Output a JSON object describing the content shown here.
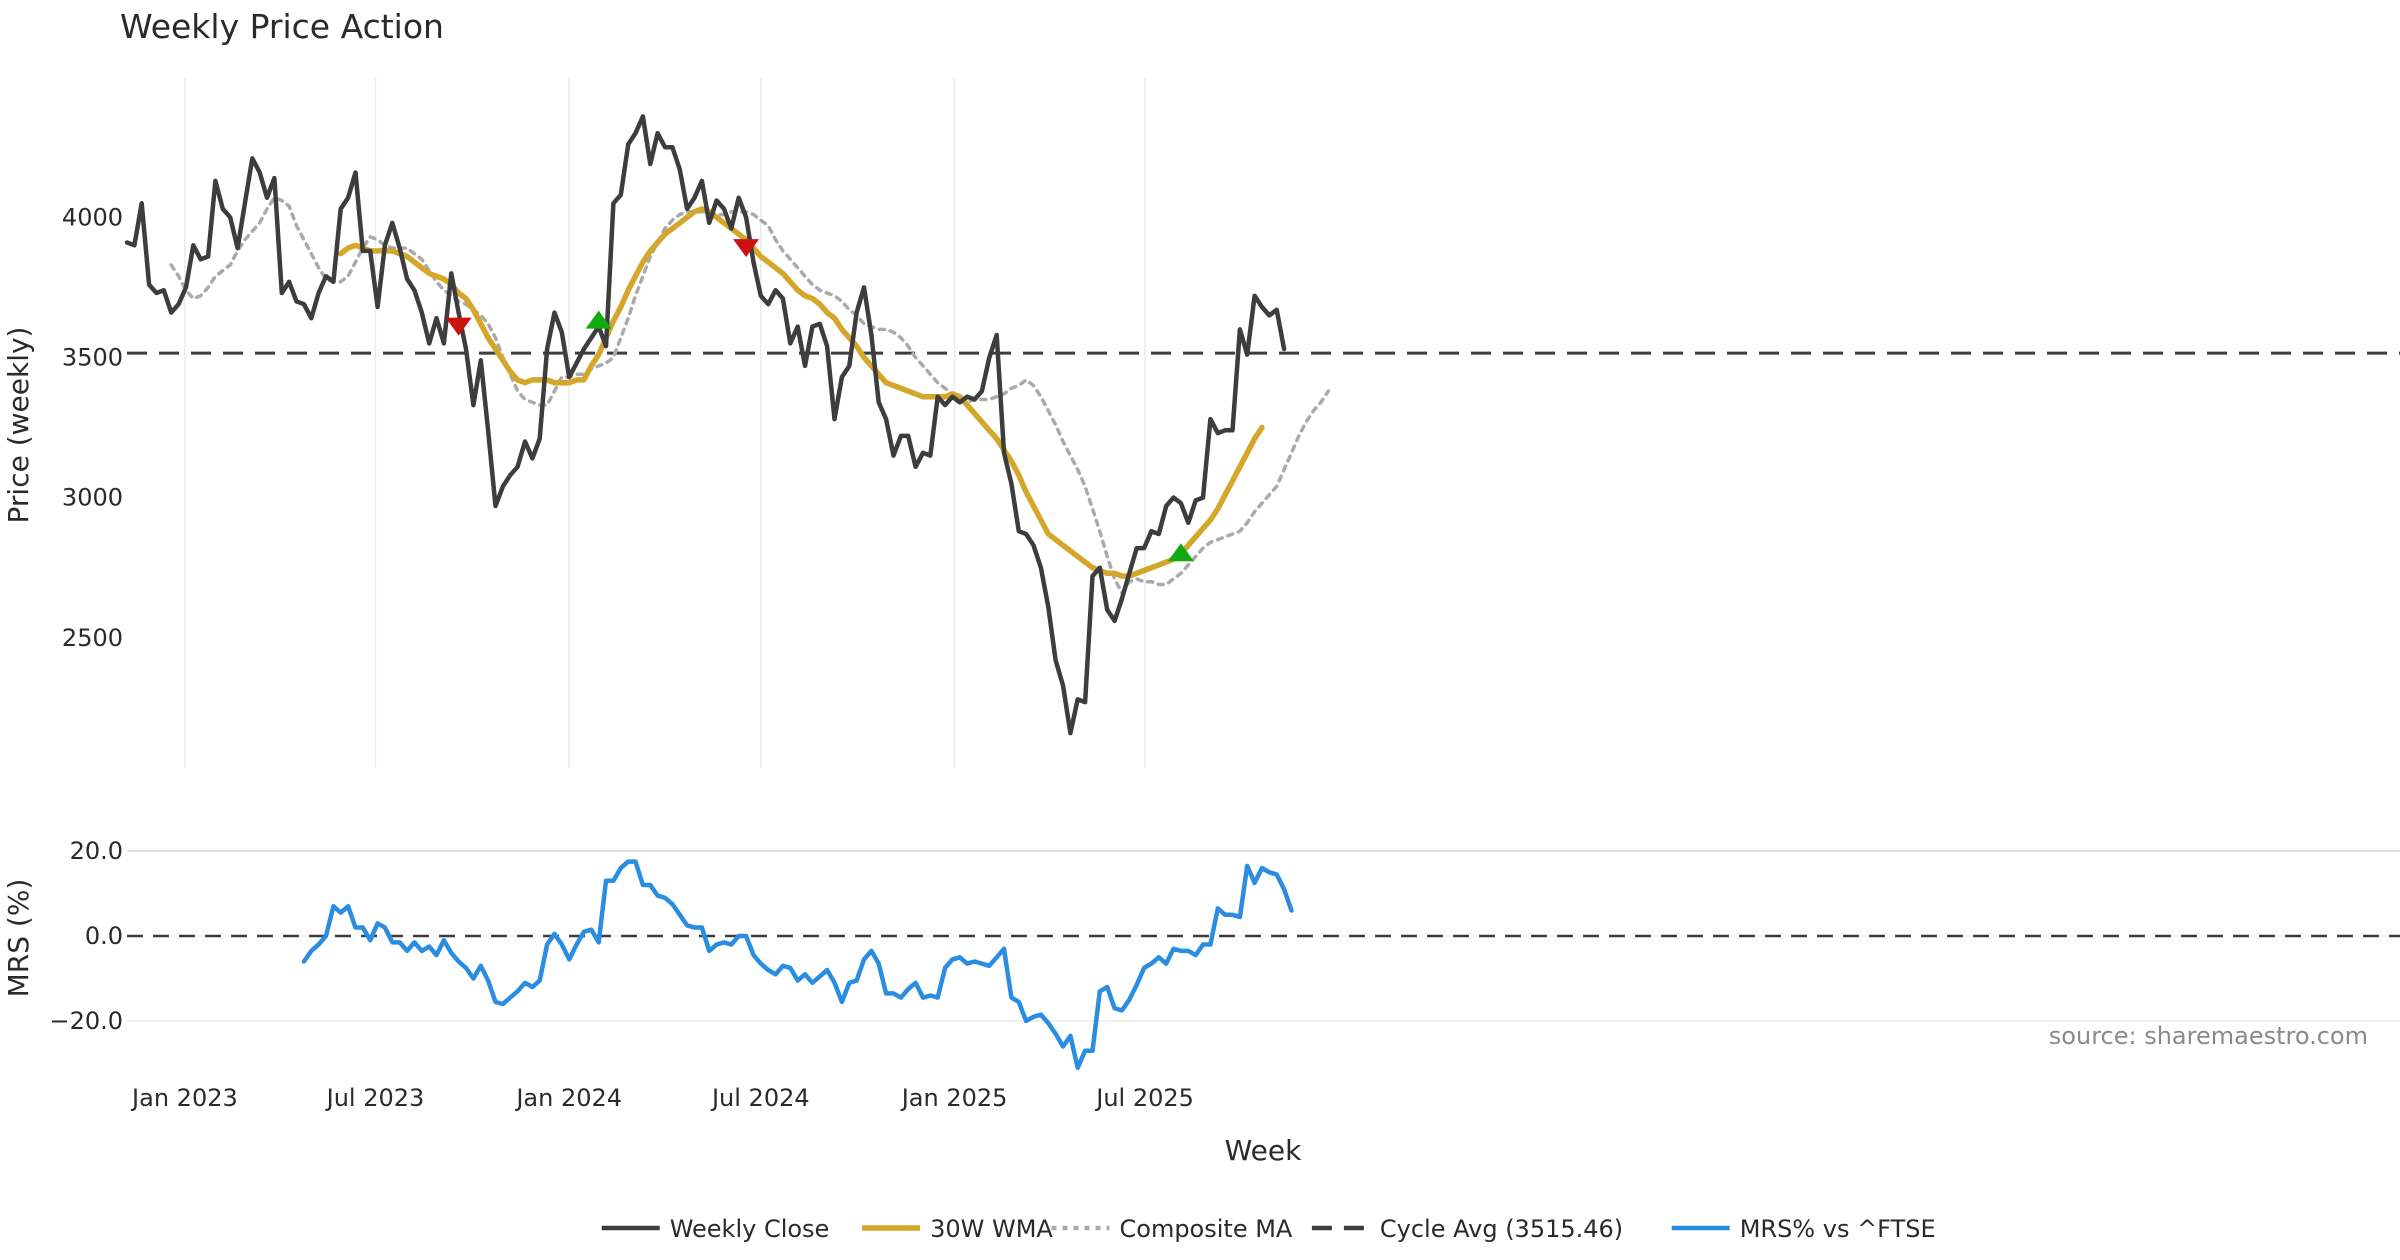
{
  "chart_data": {
    "type": "line",
    "title": "Weekly Price Action",
    "xlabel": "Week",
    "x_ticks": [
      "Jan 2023",
      "Jul 2023",
      "Jan 2024",
      "Jul 2024",
      "Jan 2025",
      "Jul 2025"
    ],
    "start_date": "2022-11-07",
    "source": "source: sharemaestro.com",
    "grid": true,
    "legend_position": "bottom",
    "price_panel": {
      "ylabel": "Price (weekly)",
      "yticks": [
        2500,
        3000,
        3500,
        4000
      ],
      "ylim": [
        2080,
        4480
      ],
      "cycle_avg": 3515.46,
      "series": [
        {
          "name": "Weekly Close",
          "color": "#3d3d3d",
          "style": "solid",
          "start_index": 0,
          "values": [
            3910,
            3900,
            4050,
            3760,
            3730,
            3740,
            3660,
            3690,
            3750,
            3900,
            3850,
            3860,
            4130,
            4030,
            4000,
            3890,
            4050,
            4210,
            4160,
            4070,
            4140,
            3730,
            3770,
            3700,
            3690,
            3640,
            3730,
            3790,
            3770,
            4030,
            4070,
            4160,
            3880,
            3880,
            3680,
            3900,
            3980,
            3890,
            3780,
            3740,
            3660,
            3550,
            3640,
            3550,
            3800,
            3660,
            3530,
            3330,
            3490,
            3240,
            2970,
            3040,
            3080,
            3110,
            3200,
            3140,
            3210,
            3530,
            3660,
            3590,
            3430,
            3480,
            3530,
            3570,
            3610,
            3540,
            4050,
            4080,
            4260,
            4300,
            4360,
            4190,
            4300,
            4250,
            4250,
            4170,
            4030,
            4070,
            4130,
            3980,
            4060,
            4030,
            3960,
            4070,
            4000,
            3840,
            3720,
            3690,
            3740,
            3710,
            3550,
            3610,
            3470,
            3610,
            3620,
            3540,
            3280,
            3430,
            3470,
            3660,
            3750,
            3580,
            3340,
            3280,
            3150,
            3220,
            3220,
            3110,
            3160,
            3150,
            3360,
            3330,
            3360,
            3340,
            3360,
            3350,
            3380,
            3500,
            3580,
            3160,
            3050,
            2880,
            2870,
            2830,
            2750,
            2610,
            2420,
            2330,
            2160,
            2280,
            2270,
            2720,
            2750,
            2600,
            2560,
            2640,
            2730,
            2820,
            2820,
            2880,
            2870,
            2970,
            3000,
            2980,
            2910,
            2990,
            3000,
            3280,
            3230,
            3240,
            3240,
            3600,
            3510,
            3720,
            3680,
            3650,
            3670,
            3530
          ]
        },
        {
          "name": "30W WMA",
          "color": "#d4a62a",
          "style": "solid",
          "start_index": 29,
          "values": [
            3870,
            3890,
            3900,
            3890,
            3880,
            3880,
            3880,
            3880,
            3870,
            3860,
            3840,
            3820,
            3800,
            3790,
            3780,
            3760,
            3730,
            3710,
            3670,
            3620,
            3570,
            3530,
            3490,
            3450,
            3420,
            3410,
            3420,
            3420,
            3420,
            3410,
            3410,
            3410,
            3420,
            3420,
            3470,
            3510,
            3570,
            3630,
            3680,
            3740,
            3790,
            3840,
            3880,
            3910,
            3940,
            3960,
            3980,
            4000,
            4020,
            4030,
            4020,
            4000,
            3980,
            3960,
            3940,
            3920,
            3890,
            3860,
            3840,
            3820,
            3800,
            3770,
            3740,
            3720,
            3710,
            3690,
            3660,
            3640,
            3600,
            3570,
            3540,
            3500,
            3470,
            3440,
            3410,
            3400,
            3390,
            3380,
            3370,
            3360,
            3360,
            3360,
            3360,
            3370,
            3360,
            3330,
            3300,
            3270,
            3240,
            3210,
            3170,
            3130,
            3080,
            3020,
            2970,
            2920,
            2870,
            2850,
            2830,
            2810,
            2790,
            2770,
            2750,
            2740,
            2730,
            2730,
            2720,
            2720,
            2730,
            2740,
            2750,
            2760,
            2770,
            2780,
            2800,
            2830,
            2860,
            2890,
            2920,
            2960,
            3010,
            3060,
            3110,
            3160,
            3210,
            3250
          ]
        },
        {
          "name": "Composite MA",
          "color": "#aaaaaa",
          "style": "dotted",
          "start_index": 6,
          "values": [
            3830,
            3790,
            3740,
            3710,
            3720,
            3750,
            3790,
            3810,
            3830,
            3880,
            3920,
            3950,
            3980,
            4030,
            4070,
            4060,
            4040,
            3970,
            3920,
            3870,
            3820,
            3780,
            3770,
            3770,
            3790,
            3840,
            3890,
            3930,
            3920,
            3900,
            3890,
            3890,
            3890,
            3870,
            3850,
            3810,
            3770,
            3740,
            3720,
            3700,
            3690,
            3670,
            3650,
            3620,
            3570,
            3500,
            3440,
            3380,
            3350,
            3340,
            3330,
            3330,
            3380,
            3430,
            3430,
            3440,
            3440,
            3460,
            3470,
            3480,
            3500,
            3570,
            3640,
            3720,
            3790,
            3860,
            3910,
            3960,
            3990,
            4010,
            4020,
            4020,
            4020,
            4020,
            4010,
            4010,
            4020,
            4020,
            4020,
            4010,
            3990,
            3970,
            3920,
            3880,
            3850,
            3820,
            3790,
            3760,
            3740,
            3730,
            3720,
            3700,
            3670,
            3650,
            3620,
            3610,
            3600,
            3600,
            3590,
            3570,
            3540,
            3500,
            3470,
            3440,
            3410,
            3390,
            3370,
            3350,
            3340,
            3350,
            3350,
            3350,
            3360,
            3370,
            3390,
            3400,
            3420,
            3400,
            3360,
            3310,
            3260,
            3200,
            3150,
            3100,
            3040,
            2960,
            2880,
            2790,
            2710,
            2660,
            2700,
            2710,
            2700,
            2700,
            2690,
            2690,
            2710,
            2730,
            2760,
            2790,
            2820,
            2840,
            2850,
            2860,
            2870,
            2880,
            2910,
            2950,
            2980,
            3010,
            3040,
            3100,
            3160,
            3220,
            3270,
            3310,
            3340,
            3380
          ]
        }
      ],
      "signals": [
        {
          "type": "sell",
          "index": 45,
          "value": 3610,
          "color": "#cc1111"
        },
        {
          "type": "buy",
          "index": 64,
          "value": 3635,
          "color": "#11aa11"
        },
        {
          "type": "sell",
          "index": 84,
          "value": 3890,
          "color": "#cc1111"
        },
        {
          "type": "buy",
          "index": 143,
          "value": 2805,
          "color": "#11aa11"
        }
      ]
    },
    "mrs_panel": {
      "ylabel": "MRS (%)",
      "yticks": [
        -20,
        0,
        20
      ],
      "ytick_labels": [
        "−20.0",
        "0.0",
        "20.0"
      ],
      "ylim": [
        -32,
        22
      ],
      "zero_line": 0,
      "series": [
        {
          "name": "MRS% vs ^FTSE",
          "color": "#2b8de2",
          "style": "solid",
          "start_index": 24,
          "values": [
            -6,
            -3.5,
            -2,
            0,
            7,
            5.5,
            7,
            2,
            2,
            -1,
            3,
            2,
            -1.5,
            -1.5,
            -3.5,
            -1.5,
            -3.5,
            -2.5,
            -4.5,
            -1,
            -4,
            -6,
            -7.5,
            -10,
            -7,
            -10.5,
            -15.5,
            -16,
            -14.5,
            -13,
            -11,
            -12,
            -10.5,
            -2,
            0.5,
            -2,
            -5.5,
            -2,
            1,
            1.5,
            -1.5,
            13,
            13,
            16,
            17.5,
            17.5,
            12,
            12,
            9.5,
            9,
            7.5,
            5,
            2.5,
            2,
            2,
            -3.5,
            -2,
            -1.5,
            -2,
            0,
            0,
            -4.5,
            -6.5,
            -8,
            -9,
            -7,
            -7.5,
            -10.5,
            -9,
            -11,
            -9.5,
            -8,
            -11,
            -15.5,
            -11,
            -10.5,
            -5.5,
            -3.5,
            -6.5,
            -13.5,
            -13.5,
            -14.5,
            -12.5,
            -11,
            -14.5,
            -14,
            -14.5,
            -7.5,
            -5.5,
            -5,
            -6.5,
            -6,
            -6.5,
            -7,
            -5,
            -3,
            -14.5,
            -15.5,
            -20,
            -19,
            -18.5,
            -20.5,
            -23,
            -26,
            -23.5,
            -31,
            -27,
            -27,
            -13,
            -12,
            -17,
            -17.5,
            -15,
            -11.5,
            -7.5,
            -6.5,
            -5,
            -6.5,
            -3,
            -3.5,
            -3.5,
            -4.5,
            -2,
            -2,
            6.5,
            5,
            5,
            4.5,
            16.5,
            12.5,
            16,
            15,
            14.5,
            11,
            6
          ]
        }
      ]
    },
    "legend": [
      {
        "label": "Weekly Close",
        "color": "#3d3d3d",
        "style": "solid"
      },
      {
        "label": "30W WMA",
        "color": "#d4a62a",
        "style": "solid"
      },
      {
        "label": "Composite MA",
        "color": "#aaaaaa",
        "style": "dotted"
      },
      {
        "label": "Cycle Avg (3515.46)",
        "color": "#3d3d3d",
        "style": "dashed"
      },
      {
        "label": "MRS% vs ^FTSE",
        "color": "#2b8de2",
        "style": "solid"
      }
    ]
  }
}
